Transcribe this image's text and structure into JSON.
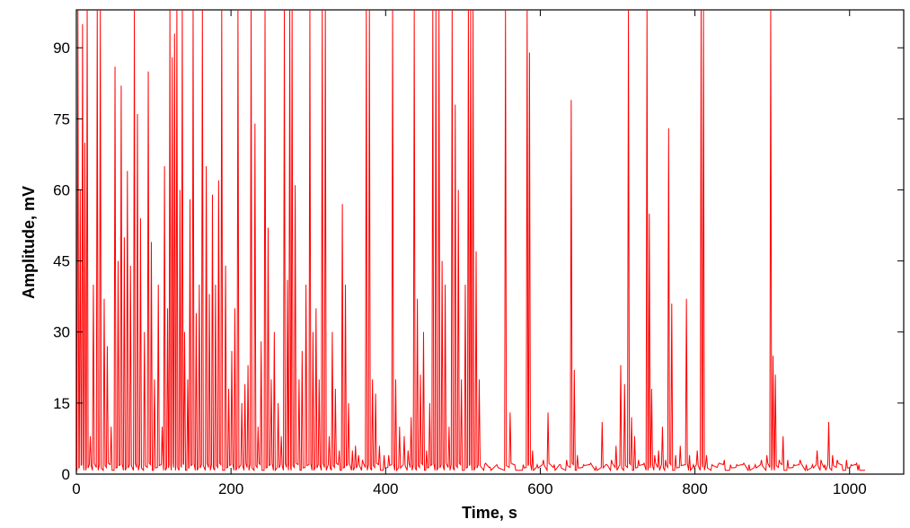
{
  "chart_data": {
    "type": "line",
    "title": "",
    "xlabel": "Time, s",
    "ylabel": "Amplitude, mV",
    "xlim": [
      0,
      1070
    ],
    "ylim": [
      0,
      98
    ],
    "grid": false,
    "x_ticks": [
      0,
      200,
      400,
      600,
      800,
      1000
    ],
    "y_ticks": [
      0,
      15,
      30,
      45,
      60,
      75,
      90
    ],
    "x_tick_labels": [
      "0",
      "200",
      "400",
      "600",
      "800",
      "1000"
    ],
    "y_tick_labels": [
      "0",
      "15",
      "30",
      "45",
      "60",
      "75",
      "90"
    ],
    "series": [
      {
        "color": "#ff0000",
        "baseline": 0.8,
        "spikes": [
          [
            2,
            98
          ],
          [
            5,
            60
          ],
          [
            8,
            95
          ],
          [
            11,
            70
          ],
          [
            14,
            98
          ],
          [
            18,
            8
          ],
          [
            22,
            40
          ],
          [
            27,
            98
          ],
          [
            31,
            98
          ],
          [
            36,
            37
          ],
          [
            40,
            27
          ],
          [
            45,
            10
          ],
          [
            50,
            86
          ],
          [
            54,
            45
          ],
          [
            58,
            82
          ],
          [
            62,
            50
          ],
          [
            66,
            64
          ],
          [
            70,
            44
          ],
          [
            75,
            98
          ],
          [
            79,
            76
          ],
          [
            83,
            54
          ],
          [
            88,
            30
          ],
          [
            93,
            85
          ],
          [
            97,
            49
          ],
          [
            101,
            20
          ],
          [
            106,
            40
          ],
          [
            111,
            10
          ],
          [
            114,
            65
          ],
          [
            118,
            35
          ],
          [
            121,
            98
          ],
          [
            124,
            88
          ],
          [
            127,
            93
          ],
          [
            130,
            98
          ],
          [
            134,
            60
          ],
          [
            137,
            98
          ],
          [
            140,
            30
          ],
          [
            144,
            20
          ],
          [
            147,
            58
          ],
          [
            151,
            98
          ],
          [
            155,
            34
          ],
          [
            159,
            40
          ],
          [
            163,
            98
          ],
          [
            168,
            65
          ],
          [
            172,
            38
          ],
          [
            176,
            59
          ],
          [
            180,
            40
          ],
          [
            184,
            62
          ],
          [
            188,
            98
          ],
          [
            193,
            44
          ],
          [
            197,
            18
          ],
          [
            201,
            26
          ],
          [
            205,
            35
          ],
          [
            209,
            98
          ],
          [
            214,
            15
          ],
          [
            218,
            19
          ],
          [
            222,
            23
          ],
          [
            226,
            98
          ],
          [
            231,
            74
          ],
          [
            235,
            10
          ],
          [
            239,
            28
          ],
          [
            244,
            98
          ],
          [
            248,
            52
          ],
          [
            252,
            20
          ],
          [
            256,
            30
          ],
          [
            261,
            15
          ],
          [
            265,
            8
          ],
          [
            269,
            98
          ],
          [
            273,
            41
          ],
          [
            276,
            98
          ],
          [
            279,
            98
          ],
          [
            283,
            61
          ],
          [
            288,
            20
          ],
          [
            292,
            26
          ],
          [
            297,
            40
          ],
          [
            302,
            98
          ],
          [
            306,
            30
          ],
          [
            310,
            35
          ],
          [
            314,
            20
          ],
          [
            318,
            98
          ],
          [
            322,
            98
          ],
          [
            327,
            8
          ],
          [
            331,
            30
          ],
          [
            335,
            18
          ],
          [
            340,
            5
          ],
          [
            344,
            57
          ],
          [
            348,
            40
          ],
          [
            352,
            15
          ],
          [
            357,
            5
          ],
          [
            361,
            6
          ],
          [
            365,
            4
          ],
          [
            370,
            3
          ],
          [
            375,
            98
          ],
          [
            379,
            98
          ],
          [
            383,
            20
          ],
          [
            387,
            17
          ],
          [
            392,
            6
          ],
          [
            398,
            4
          ],
          [
            404,
            4
          ],
          [
            409,
            98
          ],
          [
            413,
            20
          ],
          [
            418,
            10
          ],
          [
            424,
            8
          ],
          [
            429,
            5
          ],
          [
            433,
            12
          ],
          [
            437,
            98
          ],
          [
            441,
            37
          ],
          [
            445,
            21
          ],
          [
            449,
            30
          ],
          [
            453,
            5
          ],
          [
            457,
            15
          ],
          [
            461,
            98
          ],
          [
            465,
            98
          ],
          [
            469,
            98
          ],
          [
            473,
            45
          ],
          [
            477,
            40
          ],
          [
            482,
            10
          ],
          [
            486,
            98
          ],
          [
            490,
            78
          ],
          [
            494,
            60
          ],
          [
            498,
            20
          ],
          [
            503,
            40
          ],
          [
            507,
            98
          ],
          [
            510,
            98
          ],
          [
            513,
            98
          ],
          [
            517,
            47
          ],
          [
            521,
            20
          ],
          [
            528,
            2
          ],
          [
            535,
            1.5
          ],
          [
            545,
            1.5
          ],
          [
            555,
            98
          ],
          [
            561,
            13
          ],
          [
            567,
            2
          ],
          [
            578,
            2
          ],
          [
            583,
            98
          ],
          [
            586,
            89
          ],
          [
            590,
            5
          ],
          [
            596,
            2
          ],
          [
            604,
            3
          ],
          [
            610,
            13
          ],
          [
            618,
            2
          ],
          [
            626,
            2
          ],
          [
            634,
            3
          ],
          [
            640,
            79
          ],
          [
            644,
            22
          ],
          [
            648,
            4
          ],
          [
            656,
            2
          ],
          [
            664,
            2
          ],
          [
            672,
            1.5
          ],
          [
            680,
            11
          ],
          [
            686,
            2
          ],
          [
            692,
            3
          ],
          [
            698,
            6
          ],
          [
            704,
            23
          ],
          [
            709,
            19
          ],
          [
            714,
            98
          ],
          [
            718,
            12
          ],
          [
            722,
            8
          ],
          [
            727,
            3
          ],
          [
            733,
            2
          ],
          [
            738,
            98
          ],
          [
            741,
            55
          ],
          [
            744,
            18
          ],
          [
            748,
            4
          ],
          [
            753,
            5
          ],
          [
            758,
            10
          ],
          [
            762,
            3
          ],
          [
            766,
            73
          ],
          [
            770,
            36
          ],
          [
            775,
            4
          ],
          [
            781,
            6
          ],
          [
            789,
            37
          ],
          [
            793,
            4
          ],
          [
            798,
            2
          ],
          [
            803,
            5
          ],
          [
            808,
            98
          ],
          [
            811,
            98
          ],
          [
            815,
            4
          ],
          [
            822,
            2
          ],
          [
            830,
            2
          ],
          [
            838,
            3
          ],
          [
            846,
            2
          ],
          [
            854,
            2
          ],
          [
            862,
            2
          ],
          [
            870,
            2
          ],
          [
            878,
            2
          ],
          [
            886,
            3
          ],
          [
            893,
            4
          ],
          [
            898,
            98
          ],
          [
            901,
            25
          ],
          [
            904,
            21
          ],
          [
            909,
            3
          ],
          [
            914,
            8
          ],
          [
            920,
            3
          ],
          [
            928,
            2
          ],
          [
            936,
            3
          ],
          [
            944,
            2
          ],
          [
            952,
            2
          ],
          [
            958,
            5
          ],
          [
            963,
            3
          ],
          [
            968,
            2
          ],
          [
            973,
            11
          ],
          [
            978,
            4
          ],
          [
            984,
            3
          ],
          [
            990,
            2
          ],
          [
            996,
            3
          ],
          [
            1002,
            2
          ],
          [
            1008,
            2
          ],
          [
            1012,
            2
          ]
        ]
      }
    ]
  }
}
